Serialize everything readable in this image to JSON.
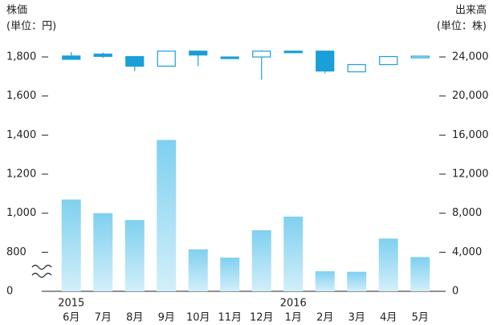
{
  "chart_data": {
    "type": "candlestick",
    "y_label": [
      "株価",
      "(単位：円)"
    ],
    "y2_label": [
      "出来高",
      "(単位：株)"
    ],
    "categories": [
      "6月",
      "7月",
      "8月",
      "9月",
      "10月",
      "11月",
      "12月",
      "1月",
      "2月",
      "3月",
      "4月",
      "5月"
    ],
    "x_groups": [
      {
        "label": "2015",
        "start": 0
      },
      {
        "label": "2016",
        "start": 7
      }
    ],
    "candles": {
      "open": [
        1805,
        1815,
        1802,
        1753,
        1830,
        1800,
        1800,
        1830,
        1830,
        1724,
        1761,
        1800
      ],
      "high": [
        1825,
        1822,
        1802,
        1830,
        1830,
        1800,
        1835,
        1830,
        1830,
        1761,
        1802,
        1804
      ],
      "low": [
        1785,
        1795,
        1728,
        1753,
        1753,
        1797,
        1683,
        1826,
        1716,
        1724,
        1761,
        1800
      ],
      "close": [
        1788,
        1803,
        1753,
        1830,
        1810,
        1797,
        1830,
        1826,
        1728,
        1761,
        1802,
        1804
      ]
    },
    "volume": [
      9400,
      8000,
      7300,
      15500,
      4300,
      3450,
      6250,
      7650,
      2050,
      2000,
      5400,
      3500
    ],
    "color": "#1a9fd8",
    "volume_colors": [
      "#7fd0f0",
      "#d2effa"
    ],
    "ylim": [
      0,
      1800
    ],
    "ybreak": [
      0,
      800
    ],
    "yticks": [
      0,
      800,
      {
        "value": 1000,
        "label": "1,000"
      },
      {
        "value": 1200,
        "label": "1,200"
      },
      {
        "value": 1400,
        "label": "1,400"
      },
      {
        "value": 1600,
        "label": "1,600"
      },
      {
        "value": 1800,
        "label": "1,800"
      }
    ],
    "y2lim": [
      0,
      24000
    ],
    "y2ticks": [
      0,
      {
        "value": 4000,
        "label": "4,000"
      },
      {
        "value": 8000,
        "label": "8,000"
      },
      {
        "value": 12000,
        "label": "12,000"
      },
      {
        "value": 16000,
        "label": "16,000"
      },
      {
        "value": 20000,
        "label": "20,000"
      },
      {
        "value": 24000,
        "label": "24,000"
      }
    ]
  }
}
